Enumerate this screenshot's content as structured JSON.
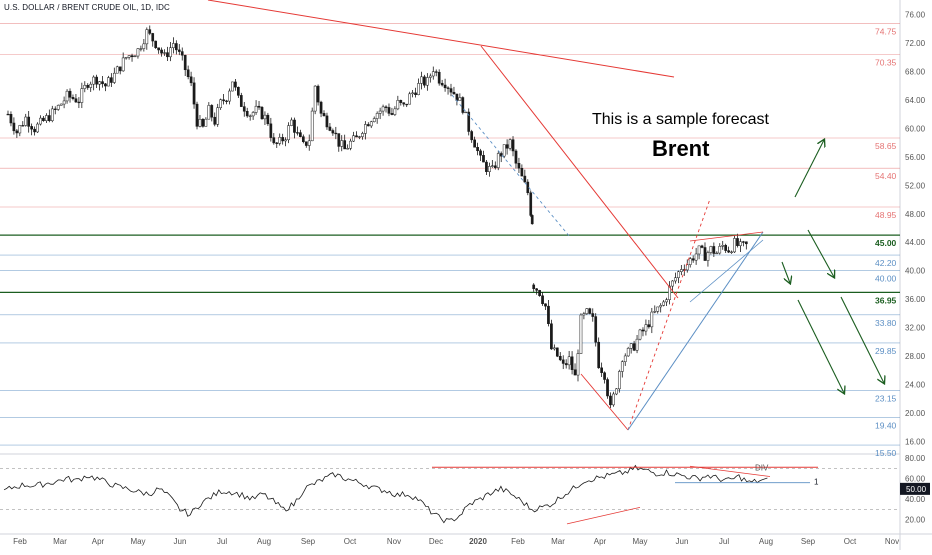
{
  "header": {
    "symbol_title": "U.S. DOLLAR / BRENT CRUDE OIL, 1D, IDC"
  },
  "annotations": {
    "forecast_text": "This is a sample forecast",
    "instrument": "Brent"
  },
  "chart_data": {
    "type": "candlestick",
    "title": "U.S. DOLLAR / BRENT CRUDE OIL, 1D, IDC",
    "x_tick_labels": [
      "Feb",
      "Mar",
      "Apr",
      "May",
      "Jun",
      "Jul",
      "Aug",
      "Sep",
      "Oct",
      "Nov",
      "Dec",
      "2020",
      "Feb",
      "Mar",
      "Apr",
      "May",
      "Jun",
      "Jul",
      "Aug",
      "Sep",
      "Oct",
      "Nov"
    ],
    "y_axis": {
      "ylim": [
        14.8,
        77.2
      ],
      "tick_labels": [
        "76.00",
        "72.00",
        "68.00",
        "64.00",
        "60.00",
        "56.00",
        "52.00",
        "48.00",
        "44.00",
        "40.00",
        "36.00",
        "32.00",
        "28.00",
        "24.00",
        "20.00",
        "16.00"
      ]
    },
    "price_levels": [
      {
        "label": "74.75",
        "value": 74.75,
        "color": "#e57373"
      },
      {
        "label": "70.35",
        "value": 70.35,
        "color": "#e57373"
      },
      {
        "label": "58.65",
        "value": 58.65,
        "color": "#e57373"
      },
      {
        "label": "54.40",
        "value": 54.4,
        "color": "#e57373"
      },
      {
        "label": "48.95",
        "value": 48.95,
        "color": "#e57373"
      },
      {
        "label": "45.00",
        "value": 45.0,
        "color": "#1b5e20",
        "bold": true
      },
      {
        "label": "42.20",
        "value": 42.2,
        "color": "#5c8fc4"
      },
      {
        "label": "40.00",
        "value": 40.0,
        "color": "#5c8fc4"
      },
      {
        "label": "36.95",
        "value": 36.95,
        "color": "#1b5e20",
        "bold": true
      },
      {
        "label": "33.80",
        "value": 33.8,
        "color": "#5c8fc4"
      },
      {
        "label": "29.85",
        "value": 29.85,
        "color": "#5c8fc4"
      },
      {
        "label": "23.15",
        "value": 23.15,
        "color": "#5c8fc4"
      },
      {
        "label": "19.40",
        "value": 19.4,
        "color": "#5c8fc4"
      },
      {
        "label": "15.50",
        "value": 15.5,
        "color": "#5c8fc4"
      }
    ],
    "price_path": [
      [
        0,
        62
      ],
      [
        3,
        59.5
      ],
      [
        6,
        61.5
      ],
      [
        9,
        60
      ],
      [
        12,
        61
      ],
      [
        16,
        62.5
      ],
      [
        20,
        64.5
      ],
      [
        24,
        64
      ],
      [
        27,
        66.5
      ],
      [
        30,
        67
      ],
      [
        33,
        66
      ],
      [
        36,
        67.5
      ],
      [
        40,
        70
      ],
      [
        44,
        71
      ],
      [
        47,
        73.5
      ],
      [
        50,
        72
      ],
      [
        53,
        70
      ],
      [
        56,
        72
      ],
      [
        59,
        69.5
      ],
      [
        62,
        66
      ],
      [
        64,
        61
      ],
      [
        66,
        60
      ],
      [
        68,
        62.5
      ],
      [
        70,
        61
      ],
      [
        72,
        63.5
      ],
      [
        74,
        64.5
      ],
      [
        76,
        66.8
      ],
      [
        78,
        64
      ],
      [
        80,
        63
      ],
      [
        82,
        62
      ],
      [
        84,
        62.5
      ],
      [
        86,
        62
      ],
      [
        88,
        61
      ],
      [
        90,
        57.5
      ],
      [
        92,
        58
      ],
      [
        94,
        59
      ],
      [
        96,
        61
      ],
      [
        98,
        59
      ],
      [
        100,
        57.5
      ],
      [
        102,
        58.5
      ],
      [
        104,
        66
      ],
      [
        106,
        62
      ],
      [
        108,
        61
      ],
      [
        110,
        60
      ],
      [
        112,
        58
      ],
      [
        114,
        57
      ],
      [
        116,
        58
      ],
      [
        118,
        58.5
      ],
      [
        120,
        60
      ],
      [
        122,
        61
      ],
      [
        124,
        62
      ],
      [
        126,
        62.5
      ],
      [
        128,
        63
      ],
      [
        130,
        62
      ],
      [
        132,
        63.5
      ],
      [
        134,
        63
      ],
      [
        136,
        64.5
      ],
      [
        138,
        65.5
      ],
      [
        140,
        66.5
      ],
      [
        142,
        66.5
      ],
      [
        144,
        68.5
      ],
      [
        146,
        67
      ],
      [
        148,
        66.5
      ],
      [
        150,
        65.5
      ],
      [
        152,
        64.5
      ],
      [
        154,
        63
      ],
      [
        156,
        60
      ],
      [
        158,
        58
      ],
      [
        160,
        55.5
      ],
      [
        162,
        54.5
      ],
      [
        164,
        54
      ],
      [
        166,
        56
      ],
      [
        168,
        57
      ],
      [
        170,
        58
      ],
      [
        172,
        55
      ],
      [
        174,
        53
      ],
      [
        176,
        51
      ],
      [
        177.5,
        47
      ]
    ],
    "price_path_2": [
      [
        178,
        38
      ],
      [
        180,
        37
      ],
      [
        182,
        35
      ],
      [
        184,
        29
      ],
      [
        186,
        28
      ],
      [
        188,
        26.5
      ],
      [
        190,
        27.5
      ],
      [
        192,
        25
      ],
      [
        194,
        33
      ],
      [
        196,
        34
      ],
      [
        198,
        33
      ],
      [
        200,
        27
      ],
      [
        202,
        25.5
      ],
      [
        204,
        20.5
      ],
      [
        206,
        24
      ],
      [
        208,
        28
      ],
      [
        210,
        28.5
      ],
      [
        212,
        29.5
      ],
      [
        214,
        31
      ],
      [
        216,
        32
      ],
      [
        218,
        33.5
      ],
      [
        220,
        34.5
      ],
      [
        222,
        35.5
      ],
      [
        224,
        37.5
      ],
      [
        226,
        39
      ],
      [
        228,
        40.5
      ],
      [
        230,
        41
      ],
      [
        232,
        42
      ],
      [
        234,
        42.8
      ],
      [
        236,
        42.2
      ],
      [
        238,
        43
      ],
      [
        240,
        42.5
      ],
      [
        242,
        43.5
      ],
      [
        244,
        43
      ],
      [
        246,
        43.8
      ],
      [
        248,
        43.3
      ],
      [
        250,
        43.5
      ]
    ],
    "rsi": {
      "ylim": [
        10,
        80
      ],
      "tick_labels": [
        "80.00",
        "60.00",
        "40.00",
        "20.00"
      ],
      "current_label": "50.00",
      "current_value": 50,
      "values": [
        48,
        52,
        54,
        53,
        55,
        57,
        60,
        58,
        63,
        60,
        56,
        52,
        50,
        47,
        45,
        50,
        42,
        30,
        25,
        36,
        42,
        48,
        47,
        44,
        40,
        45,
        38,
        30,
        35,
        50,
        55,
        60,
        64,
        60,
        57,
        54,
        50,
        48,
        44,
        45,
        40,
        30,
        22,
        18,
        24,
        35,
        40,
        46,
        50,
        45,
        38,
        30,
        32,
        36,
        44,
        50,
        58,
        60,
        62,
        64,
        66,
        70,
        68,
        65,
        66,
        64,
        62,
        60,
        63,
        60,
        58,
        62,
        56,
        58
      ]
    },
    "notes": {
      "divergence_label": "DIV",
      "rsi_level_label": "1"
    }
  }
}
